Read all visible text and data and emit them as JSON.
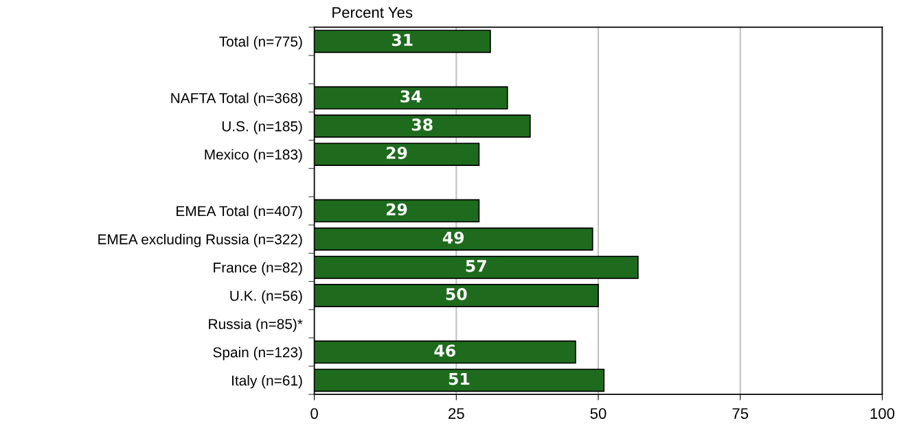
{
  "chart_data": {
    "type": "bar",
    "orientation": "horizontal",
    "title": "Percent Yes",
    "categories": [
      "Total (n=775)",
      null,
      "NAFTA Total (n=368)",
      "U.S. (n=185)",
      "Mexico (n=183)",
      null,
      "EMEA Total (n=407)",
      "EMEA excluding Russia (n=322)",
      "France (n=82)",
      "U.K. (n=56)",
      "Russia (n=85)*",
      "Spain (n=123)",
      "Italy (n=61)"
    ],
    "values": [
      31,
      null,
      34,
      38,
      29,
      null,
      29,
      49,
      57,
      50,
      null,
      46,
      51
    ],
    "color": "#1e6b1e",
    "data_labels": true,
    "xlim": [
      0,
      100
    ],
    "xticks": [
      0,
      25,
      50,
      75,
      100
    ],
    "grid": "x"
  }
}
